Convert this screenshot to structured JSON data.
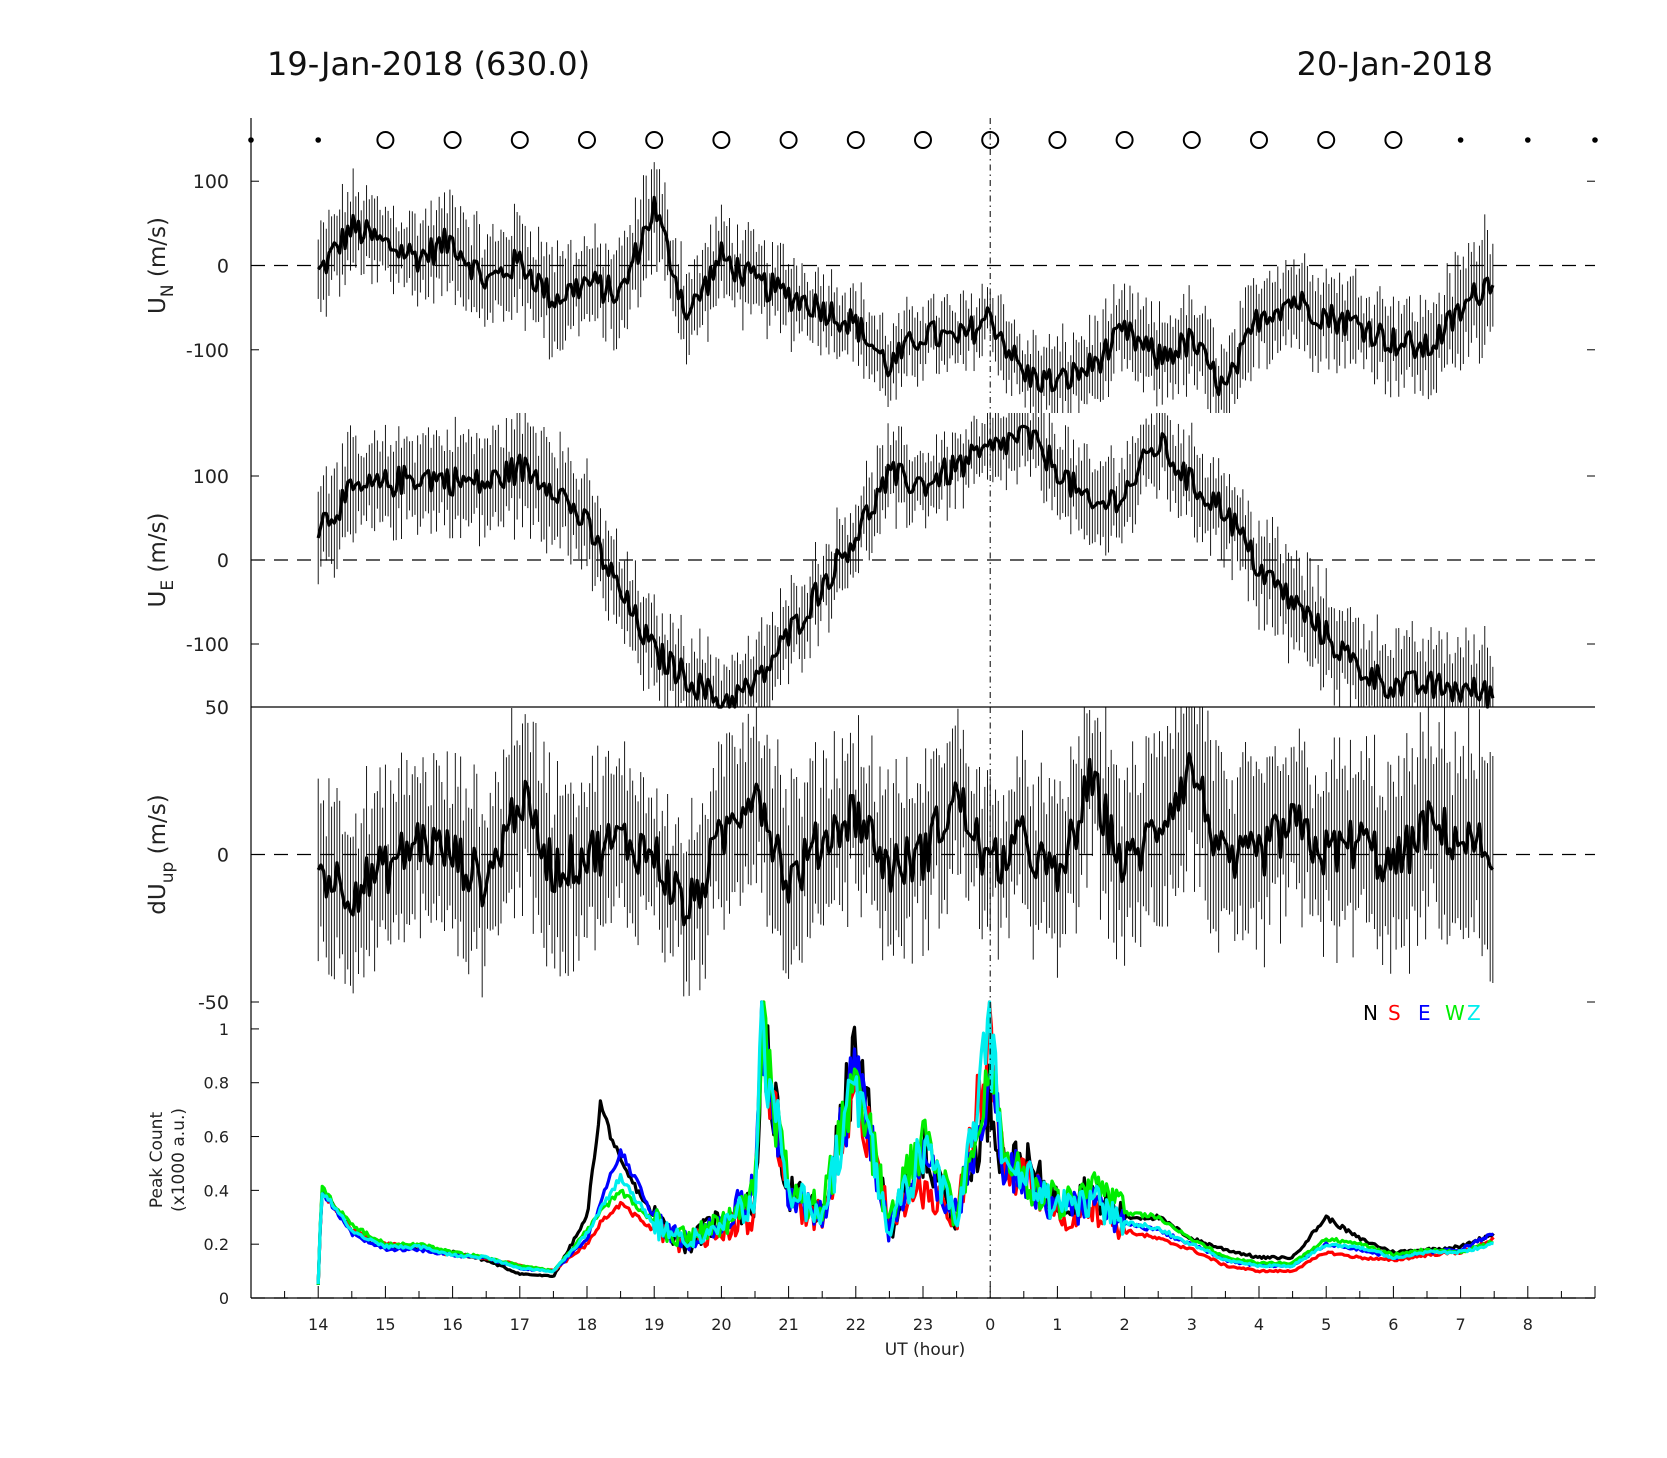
{
  "header": {
    "left_title": "19-Jan-2018 (630.0)",
    "right_title": "20-Jan-2018"
  },
  "x_axis": {
    "label": "UT (hour)",
    "tick_labels": [
      "14",
      "15",
      "16",
      "17",
      "18",
      "19",
      "20",
      "21",
      "22",
      "23",
      "0",
      "1",
      "2",
      "3",
      "4",
      "5",
      "6",
      "7",
      "8"
    ]
  },
  "colors": {
    "N": "#000000",
    "S": "#ff0000",
    "E": "#0000ff",
    "W": "#00ee00",
    "Z": "#00eeee"
  },
  "chart_data": [
    {
      "type": "markers",
      "name": "sky-condition",
      "x": [
        13.0,
        14.0,
        15.0,
        16.0,
        17.0,
        18.0,
        19.0,
        20.0,
        21.0,
        22.0,
        23.0,
        24.0,
        25.0,
        26.0,
        27.0,
        28.0,
        29.0,
        30.0,
        31.0,
        32.0,
        33.0
      ],
      "marker": [
        "dot",
        "dot",
        "circle",
        "circle",
        "circle",
        "circle",
        "circle",
        "circle",
        "circle",
        "circle",
        "circle",
        "circle",
        "circle",
        "circle",
        "circle",
        "circle",
        "circle",
        "circle",
        "dot",
        "dot",
        "dot"
      ]
    },
    {
      "type": "line",
      "name": "UN",
      "ylabel": "U",
      "ylabel_sub": "N",
      "ylabel_unit": "(m/s)",
      "ylim": [
        -175,
        175
      ],
      "yticks": [
        100,
        0,
        -100
      ],
      "ytick_labels": [
        "100",
        "0",
        "-100"
      ],
      "x": [
        14.0,
        14.5,
        15.0,
        15.5,
        16.0,
        16.5,
        17.0,
        17.5,
        18.0,
        18.5,
        19.0,
        19.5,
        20.0,
        20.5,
        21.0,
        21.5,
        22.0,
        22.5,
        23.0,
        23.5,
        24.0,
        24.5,
        25.0,
        25.5,
        26.0,
        26.5,
        27.0,
        27.5,
        28.0,
        28.5,
        29.0,
        29.5,
        30.0,
        30.5,
        31.5
      ],
      "y": [
        -10,
        45,
        25,
        10,
        30,
        -20,
        5,
        -40,
        -20,
        -35,
        70,
        -60,
        10,
        -20,
        -35,
        -50,
        -70,
        -120,
        -80,
        -90,
        -60,
        -130,
        -140,
        -120,
        -80,
        -110,
        -90,
        -150,
        -60,
        -40,
        -60,
        -70,
        -90,
        -100,
        -10
      ],
      "err": [
        45,
        50,
        45,
        45,
        50,
        50,
        55,
        55,
        50,
        50,
        55,
        50,
        45,
        45,
        45,
        40,
        40,
        40,
        40,
        40,
        40,
        40,
        45,
        45,
        45,
        45,
        50,
        50,
        50,
        50,
        50,
        50,
        50,
        50,
        70
      ]
    },
    {
      "type": "line",
      "name": "UE",
      "ylabel": "U",
      "ylabel_sub": "E",
      "ylabel_unit": "(m/s)",
      "ylim": [
        -175,
        175
      ],
      "yticks": [
        100,
        0,
        -100
      ],
      "ytick_labels": [
        "100",
        "0",
        "-100"
      ],
      "x": [
        14.0,
        14.5,
        15.0,
        15.5,
        16.0,
        16.5,
        17.0,
        17.5,
        18.0,
        18.5,
        19.0,
        19.5,
        20.0,
        20.5,
        21.0,
        21.5,
        22.0,
        22.5,
        23.0,
        23.5,
        24.0,
        24.5,
        25.0,
        25.5,
        26.0,
        26.5,
        27.0,
        27.5,
        28.0,
        28.5,
        29.0,
        29.5,
        30.0,
        30.5,
        31.5
      ],
      "y": [
        40,
        80,
        90,
        100,
        95,
        90,
        110,
        90,
        40,
        -40,
        -110,
        -140,
        -170,
        -150,
        -90,
        -30,
        30,
        100,
        90,
        110,
        130,
        150,
        110,
        60,
        80,
        140,
        90,
        60,
        -10,
        -50,
        -90,
        -130,
        -150,
        -150,
        -160
      ],
      "err": [
        60,
        55,
        50,
        50,
        55,
        55,
        60,
        60,
        55,
        50,
        50,
        50,
        50,
        50,
        50,
        45,
        45,
        45,
        40,
        40,
        40,
        45,
        50,
        50,
        50,
        50,
        50,
        50,
        55,
        55,
        55,
        55,
        55,
        55,
        60
      ]
    },
    {
      "type": "line",
      "name": "dUup",
      "ylabel": "dU",
      "ylabel_sub": "up",
      "ylabel_unit": "(m/s)",
      "ylim": [
        -50,
        50
      ],
      "yticks": [
        50,
        0,
        -50
      ],
      "ytick_labels": [
        "50",
        "0",
        "-50"
      ],
      "x": [
        14.0,
        14.5,
        15.0,
        15.5,
        16.0,
        16.5,
        17.0,
        17.5,
        18.0,
        18.5,
        19.0,
        19.5,
        20.0,
        20.5,
        21.0,
        21.5,
        22.0,
        22.5,
        23.0,
        23.5,
        24.0,
        24.5,
        25.0,
        25.5,
        26.0,
        26.5,
        27.0,
        27.5,
        28.0,
        28.5,
        29.0,
        29.5,
        30.0,
        30.5,
        31.5
      ],
      "y": [
        -5,
        -12,
        -5,
        5,
        0,
        -10,
        20,
        -5,
        0,
        5,
        0,
        -20,
        5,
        25,
        -10,
        5,
        15,
        -5,
        0,
        20,
        -5,
        5,
        -10,
        25,
        -5,
        10,
        30,
        -5,
        0,
        10,
        0,
        5,
        -5,
        10,
        0
      ],
      "err": [
        30,
        28,
        25,
        25,
        25,
        28,
        30,
        30,
        25,
        25,
        25,
        25,
        25,
        28,
        28,
        25,
        25,
        25,
        25,
        25,
        25,
        25,
        25,
        28,
        28,
        28,
        30,
        30,
        28,
        28,
        28,
        28,
        30,
        30,
        35
      ]
    },
    {
      "type": "line",
      "name": "peak-count",
      "ylabel": "Peak Count",
      "ylabel_unit": "(x1000 a.u.)",
      "ylim": [
        0,
        1.1
      ],
      "yticks": [
        0,
        0.2,
        0.4,
        0.6,
        0.8,
        1
      ],
      "ytick_labels": [
        "0",
        "0.2",
        "0.4",
        "0.6",
        "0.8",
        "1"
      ],
      "x": [
        14.0,
        14.05,
        14.5,
        15.0,
        15.5,
        16.0,
        16.5,
        17.0,
        17.5,
        18.0,
        18.2,
        18.5,
        19.0,
        19.5,
        20.0,
        20.5,
        20.6,
        21.0,
        21.5,
        22.0,
        22.5,
        23.0,
        23.5,
        24.0,
        24.2,
        24.5,
        25.0,
        25.5,
        26.0,
        26.5,
        27.0,
        27.5,
        28.0,
        28.5,
        29.0,
        29.5,
        30.0,
        30.5,
        31.0,
        31.5
      ],
      "series": [
        {
          "name": "N",
          "values": [
            0.05,
            0.4,
            0.25,
            0.19,
            0.19,
            0.17,
            0.14,
            0.09,
            0.08,
            0.3,
            0.72,
            0.5,
            0.3,
            0.2,
            0.3,
            0.35,
            0.98,
            0.4,
            0.3,
            0.9,
            0.25,
            0.55,
            0.3,
            0.75,
            0.5,
            0.5,
            0.35,
            0.4,
            0.3,
            0.3,
            0.22,
            0.18,
            0.15,
            0.15,
            0.3,
            0.22,
            0.17,
            0.18,
            0.19,
            0.24
          ]
        },
        {
          "name": "S",
          "values": [
            0.05,
            0.4,
            0.25,
            0.2,
            0.19,
            0.16,
            0.15,
            0.12,
            0.1,
            0.2,
            0.28,
            0.35,
            0.25,
            0.2,
            0.25,
            0.3,
            1.0,
            0.35,
            0.3,
            0.78,
            0.3,
            0.4,
            0.3,
            1.0,
            0.45,
            0.45,
            0.3,
            0.35,
            0.25,
            0.22,
            0.18,
            0.12,
            0.1,
            0.1,
            0.17,
            0.15,
            0.14,
            0.16,
            0.17,
            0.22
          ]
        },
        {
          "name": "E",
          "values": [
            0.05,
            0.4,
            0.24,
            0.18,
            0.18,
            0.16,
            0.15,
            0.11,
            0.1,
            0.22,
            0.35,
            0.55,
            0.3,
            0.2,
            0.28,
            0.4,
            0.98,
            0.4,
            0.3,
            0.85,
            0.25,
            0.55,
            0.3,
            0.85,
            0.5,
            0.45,
            0.32,
            0.35,
            0.28,
            0.25,
            0.2,
            0.14,
            0.12,
            0.12,
            0.2,
            0.18,
            0.15,
            0.17,
            0.18,
            0.24
          ]
        },
        {
          "name": "W",
          "values": [
            0.05,
            0.41,
            0.27,
            0.2,
            0.2,
            0.17,
            0.15,
            0.12,
            0.1,
            0.25,
            0.32,
            0.4,
            0.28,
            0.22,
            0.27,
            0.38,
            0.98,
            0.4,
            0.32,
            0.83,
            0.28,
            0.6,
            0.3,
            0.9,
            0.55,
            0.45,
            0.35,
            0.4,
            0.32,
            0.3,
            0.22,
            0.15,
            0.13,
            0.13,
            0.22,
            0.2,
            0.16,
            0.18,
            0.17,
            0.21
          ]
        },
        {
          "name": "Z",
          "values": [
            0.05,
            0.4,
            0.25,
            0.19,
            0.19,
            0.16,
            0.15,
            0.11,
            0.1,
            0.24,
            0.33,
            0.45,
            0.27,
            0.21,
            0.26,
            0.36,
            0.98,
            0.4,
            0.3,
            0.8,
            0.26,
            0.55,
            0.28,
            1.0,
            0.5,
            0.45,
            0.33,
            0.37,
            0.28,
            0.26,
            0.2,
            0.14,
            0.12,
            0.12,
            0.2,
            0.19,
            0.15,
            0.17,
            0.17,
            0.2
          ]
        }
      ]
    }
  ]
}
